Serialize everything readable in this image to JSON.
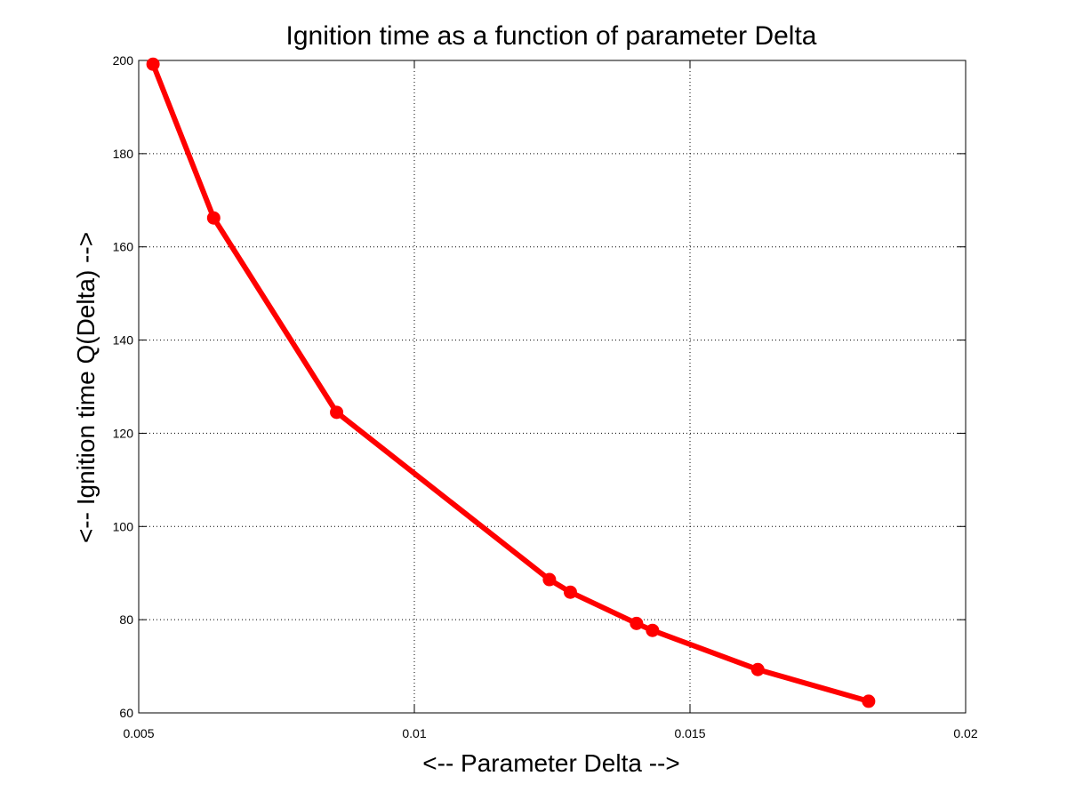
{
  "chart_data": {
    "type": "line",
    "title": "Ignition time as a function of parameter Delta",
    "xlabel": "<-- Parameter Delta -->",
    "ylabel": "<-- Ignition time Q(Delta) -->",
    "xlim": [
      0.005,
      0.02
    ],
    "ylim": [
      60,
      200
    ],
    "xticks": [
      0.005,
      0.01,
      0.015,
      0.02
    ],
    "xtick_labels": [
      "0.005",
      "0.01",
      "0.015",
      "0.02"
    ],
    "yticks": [
      60,
      80,
      100,
      120,
      140,
      160,
      180,
      200
    ],
    "ytick_labels": [
      "60",
      "80",
      "100",
      "120",
      "140",
      "160",
      "180",
      "200"
    ],
    "grid": true,
    "series": [
      {
        "color": "#ff0000",
        "marker": "circle",
        "x": [
          0.00526,
          0.00636,
          0.00859,
          0.01245,
          0.01283,
          0.01403,
          0.01432,
          0.01623,
          0.01824
        ],
        "y": [
          199.2,
          166.2,
          124.5,
          88.6,
          85.9,
          79.2,
          77.7,
          69.3,
          62.5
        ]
      }
    ]
  }
}
